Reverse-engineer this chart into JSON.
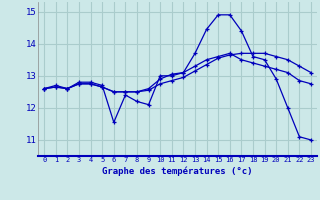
{
  "xlabel": "Graphe des températures (°c)",
  "bg_color": "#cce8e8",
  "grid_color": "#aacccc",
  "line_color": "#0000bb",
  "x_ticks": [
    0,
    1,
    2,
    3,
    4,
    5,
    6,
    7,
    8,
    9,
    10,
    11,
    12,
    13,
    14,
    15,
    16,
    17,
    18,
    19,
    20,
    21,
    22,
    23
  ],
  "ylim": [
    10.5,
    15.3
  ],
  "yticks": [
    11,
    12,
    13,
    14,
    15
  ],
  "series1": {
    "x": [
      0,
      1,
      2,
      3,
      4,
      5,
      6,
      7,
      8,
      9,
      10,
      11,
      12,
      13,
      14,
      15,
      16,
      17,
      18,
      19,
      20,
      21,
      22,
      23
    ],
    "y": [
      12.6,
      12.7,
      12.6,
      12.8,
      12.8,
      12.7,
      11.55,
      12.4,
      12.2,
      12.1,
      13.0,
      13.0,
      13.1,
      13.7,
      14.45,
      14.9,
      14.9,
      14.4,
      13.6,
      13.5,
      12.9,
      12.0,
      11.1,
      11.0
    ]
  },
  "series2": {
    "x": [
      0,
      1,
      2,
      3,
      4,
      5,
      6,
      7,
      8,
      9,
      10,
      11,
      12,
      13,
      14,
      15,
      16,
      17,
      18,
      19,
      20,
      21,
      22,
      23
    ],
    "y": [
      12.6,
      12.65,
      12.6,
      12.75,
      12.75,
      12.65,
      12.5,
      12.5,
      12.5,
      12.55,
      12.75,
      12.85,
      12.95,
      13.15,
      13.35,
      13.55,
      13.65,
      13.7,
      13.7,
      13.7,
      13.6,
      13.5,
      13.3,
      13.1
    ]
  },
  "series3": {
    "x": [
      0,
      1,
      2,
      3,
      4,
      5,
      6,
      7,
      8,
      9,
      10,
      11,
      12,
      13,
      14,
      15,
      16,
      17,
      18,
      19,
      20,
      21,
      22,
      23
    ],
    "y": [
      12.6,
      12.65,
      12.6,
      12.75,
      12.75,
      12.65,
      12.5,
      12.5,
      12.5,
      12.6,
      12.9,
      13.05,
      13.1,
      13.3,
      13.5,
      13.6,
      13.7,
      13.5,
      13.4,
      13.3,
      13.2,
      13.1,
      12.85,
      12.75
    ]
  }
}
